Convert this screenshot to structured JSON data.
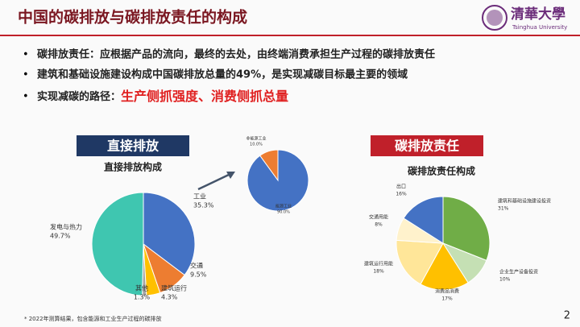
{
  "header": {
    "title": "中国的碳排放与碳排放责任的构成",
    "logo_text": "清華大學",
    "logo_subtext": "Tsinghua University"
  },
  "bullets": [
    "碳排放责任：应根据产品的流向，最终的去处，由终端消费承担生产过程的碳排放责任",
    "建筑和基础设施建设构成中国碳排放总量的49%，是实现减碳目标最主要的领域",
    {
      "text": "实现减碳的路径：",
      "highlight": "生产侧抓强度、消费侧抓总量"
    }
  ],
  "chart_data": [
    {
      "type": "pie",
      "banner": "直接排放",
      "title": "直接排放构成",
      "categories": [
        "工业",
        "交通",
        "建筑运行",
        "其他",
        "发电与热力"
      ],
      "values": [
        35.3,
        9.5,
        4.3,
        1.3,
        49.7
      ],
      "value_labels": [
        "35.3%",
        "9.5%",
        "4.3%",
        "1.3%",
        "49.7%"
      ],
      "colors": [
        "#4472c4",
        "#ed7d31",
        "#ffc000",
        "#a5a5a5",
        "#3fc6b0"
      ]
    },
    {
      "type": "pie",
      "categories": [
        "非能源工业",
        "能源工业"
      ],
      "values": [
        10.0,
        90.0
      ],
      "value_labels": [
        "10.0%",
        "90.0%"
      ],
      "colors": [
        "#ed7d31",
        "#4472c4"
      ]
    },
    {
      "type": "pie",
      "banner": "碳排放责任",
      "title": "碳排放责任构成",
      "categories": [
        "建筑和基础设施建设投资",
        "企业生产设备投资",
        "消费品消费",
        "建筑运行用能",
        "交通用能",
        "出口"
      ],
      "values": [
        31,
        10,
        17,
        18,
        8,
        16
      ],
      "value_labels": [
        "31%",
        "10%",
        "17%",
        "18%",
        "8%",
        "16%"
      ],
      "colors": [
        "#70ad47",
        "#c5e0b4",
        "#ffc000",
        "#ffe699",
        "#fff2cc",
        "#4472c4"
      ]
    }
  ],
  "footnote": "* 2022年测算结果，包含能源和工业生产过程的碳排放",
  "page_number": "2"
}
